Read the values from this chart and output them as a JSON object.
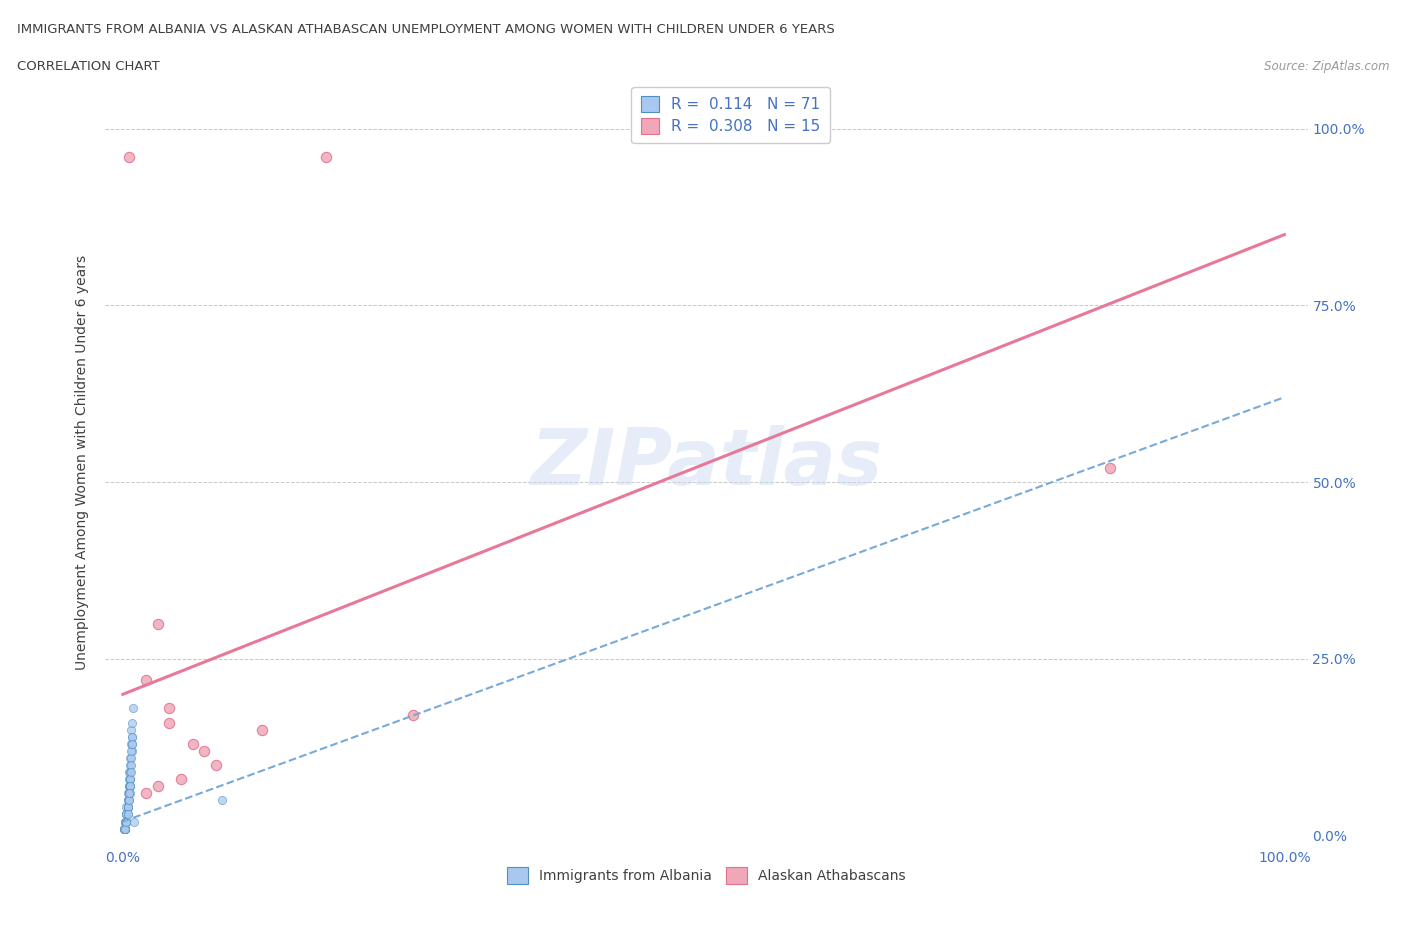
{
  "title_line1": "IMMIGRANTS FROM ALBANIA VS ALASKAN ATHABASCAN UNEMPLOYMENT AMONG WOMEN WITH CHILDREN UNDER 6 YEARS",
  "title_line2": "CORRELATION CHART",
  "source": "Source: ZipAtlas.com",
  "ylabel": "Unemployment Among Women with Children Under 6 years",
  "watermark": "ZIPatlas",
  "legend_label1": "Immigrants from Albania",
  "legend_label2": "Alaskan Athabascans",
  "blue_color": "#a8c8f0",
  "pink_color": "#f0a8b8",
  "blue_edge_color": "#5090c0",
  "pink_edge_color": "#e07090",
  "blue_line_color": "#78aad8",
  "pink_line_color": "#e87898",
  "text_color": "#4472c4",
  "title_color": "#404040",
  "blue_scatter_x": [
    0.003,
    0.005,
    0.008,
    0.002,
    0.006,
    0.004,
    0.007,
    0.003,
    0.005,
    0.009,
    0.002,
    0.004,
    0.006,
    0.008,
    0.003,
    0.005,
    0.007,
    0.002,
    0.004,
    0.006,
    0.001,
    0.003,
    0.005,
    0.007,
    0.002,
    0.004,
    0.006,
    0.003,
    0.005,
    0.008,
    0.002,
    0.004,
    0.006,
    0.001,
    0.003,
    0.005,
    0.007,
    0.002,
    0.004,
    0.006,
    0.003,
    0.005,
    0.008,
    0.002,
    0.004,
    0.006,
    0.001,
    0.003,
    0.005,
    0.007,
    0.002,
    0.004,
    0.006,
    0.003,
    0.005,
    0.008,
    0.002,
    0.004,
    0.006,
    0.001,
    0.003,
    0.005,
    0.007,
    0.002,
    0.004,
    0.006,
    0.003,
    0.005,
    0.008,
    0.085,
    0.01
  ],
  "blue_scatter_y": [
    0.04,
    0.08,
    0.12,
    0.02,
    0.1,
    0.06,
    0.15,
    0.03,
    0.09,
    0.18,
    0.01,
    0.05,
    0.11,
    0.14,
    0.02,
    0.07,
    0.13,
    0.01,
    0.04,
    0.08,
    0.01,
    0.03,
    0.06,
    0.11,
    0.02,
    0.05,
    0.09,
    0.02,
    0.07,
    0.16,
    0.01,
    0.04,
    0.08,
    0.01,
    0.03,
    0.06,
    0.12,
    0.01,
    0.04,
    0.07,
    0.02,
    0.06,
    0.13,
    0.01,
    0.04,
    0.08,
    0.01,
    0.02,
    0.05,
    0.1,
    0.01,
    0.04,
    0.07,
    0.02,
    0.06,
    0.14,
    0.01,
    0.03,
    0.07,
    0.01,
    0.02,
    0.05,
    0.09,
    0.01,
    0.03,
    0.06,
    0.02,
    0.06,
    0.13,
    0.05,
    0.02
  ],
  "pink_scatter_x": [
    0.005,
    0.175,
    0.02,
    0.25,
    0.03,
    0.85,
    0.05,
    0.07,
    0.04,
    0.12,
    0.08,
    0.03,
    0.06,
    0.02,
    0.04
  ],
  "pink_scatter_y": [
    0.96,
    0.96,
    0.22,
    0.17,
    0.3,
    0.52,
    0.08,
    0.12,
    0.18,
    0.15,
    0.1,
    0.07,
    0.13,
    0.06,
    0.16
  ],
  "blue_line_intercept": 0.02,
  "blue_line_slope": 0.6,
  "pink_line_intercept": 0.2,
  "pink_line_slope": 0.65
}
